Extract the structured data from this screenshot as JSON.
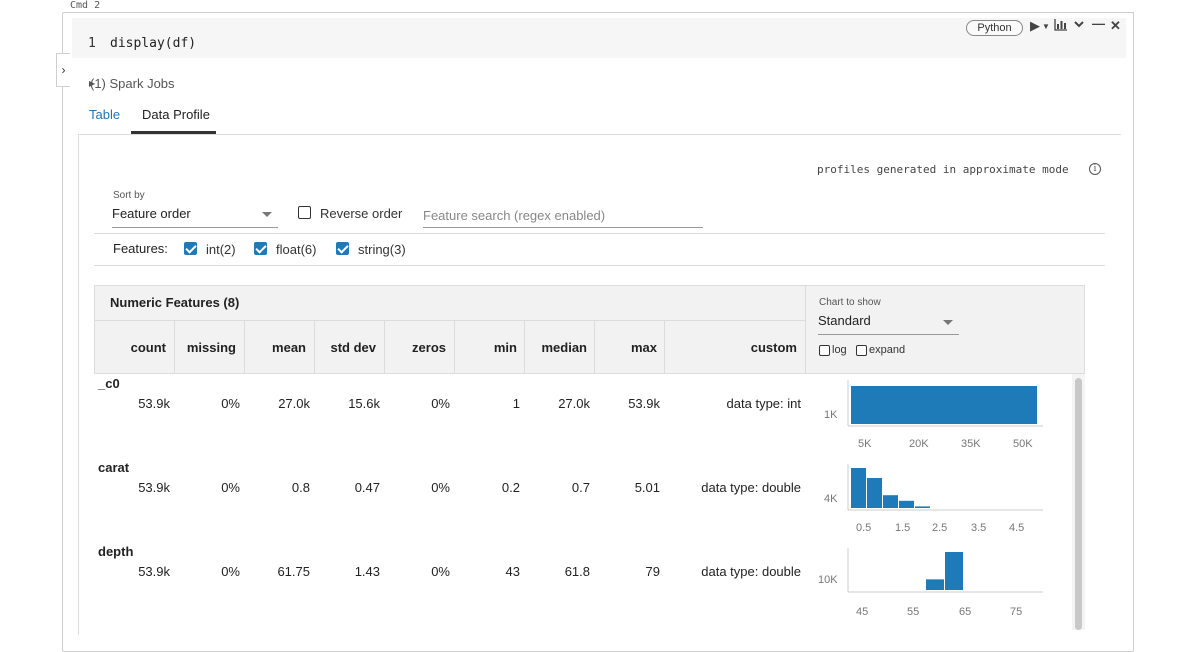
{
  "cmd": "Cmd 2",
  "code": {
    "line": "1",
    "text": "display(df)",
    "lang": "Python"
  },
  "spark_jobs": "(1) Spark Jobs",
  "tabs": [
    {
      "label": "Table"
    },
    {
      "label": "Data Profile"
    }
  ],
  "approx_note": "profiles generated in approximate mode",
  "sort": {
    "label": "Sort by",
    "value": "Feature order"
  },
  "reverse_order": "Reverse order",
  "search": {
    "placeholder": "Feature search (regex enabled)"
  },
  "features": {
    "label": "Features:",
    "items": [
      {
        "label": "int(2)"
      },
      {
        "label": "float(6)"
      },
      {
        "label": "string(3)"
      }
    ]
  },
  "numeric": {
    "title": "Numeric Features (8)",
    "columns": [
      "count",
      "missing",
      "mean",
      "std dev",
      "zeros",
      "min",
      "median",
      "max",
      "custom"
    ],
    "rows": [
      {
        "name": "_c0",
        "values": [
          "53.9k",
          "0%",
          "27.0k",
          "15.6k",
          "0%",
          "1",
          "27.0k",
          "53.9k",
          "data type: int"
        ]
      },
      {
        "name": "carat",
        "values": [
          "53.9k",
          "0%",
          "0.8",
          "0.47",
          "0%",
          "0.2",
          "0.7",
          "5.01",
          "data type: double"
        ]
      },
      {
        "name": "depth",
        "values": [
          "53.9k",
          "0%",
          "61.75",
          "1.43",
          "0%",
          "43",
          "61.8",
          "79",
          "data type: double"
        ]
      }
    ]
  },
  "chart_controls": {
    "label": "Chart to show",
    "value": "Standard",
    "log": "log",
    "expand": "expand"
  },
  "charts": [
    {
      "ylabel": "1K",
      "ticks": [
        "5K",
        "20K",
        "35K",
        "50K"
      ],
      "bars": [
        1.0
      ]
    },
    {
      "ylabel": "4K",
      "ticks": [
        "0.5",
        "1.5",
        "2.5",
        "3.5",
        "4.5"
      ],
      "bars": [
        1.0,
        0.75,
        0.32,
        0.18,
        0.04
      ]
    },
    {
      "ylabel": "10K",
      "ticks": [
        "45",
        "55",
        "65",
        "75"
      ],
      "bars": [
        0.28,
        1.0
      ]
    }
  ],
  "colors": {
    "accent": "#2474b5",
    "bar": "#1f7ab8"
  }
}
